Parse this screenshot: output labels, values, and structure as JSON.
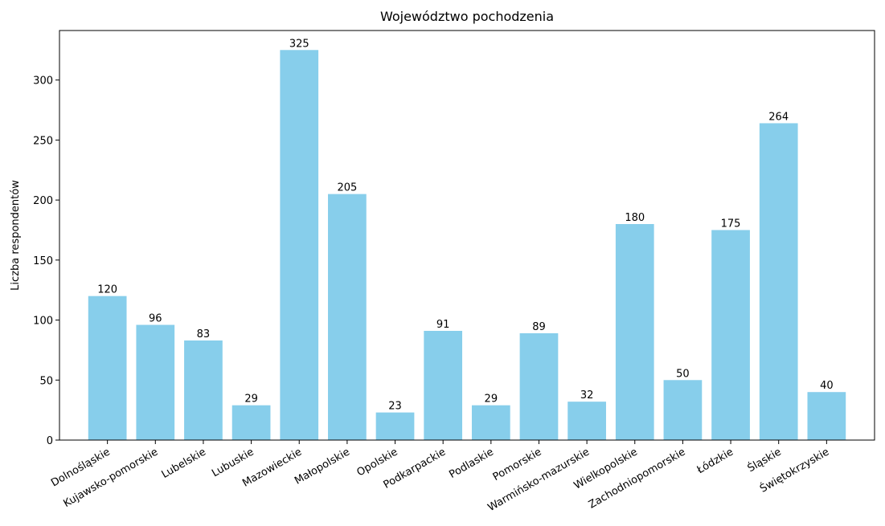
{
  "chart_data": {
    "type": "bar",
    "title": "Województwo pochodzenia",
    "ylabel": "Liczba respondentów",
    "categories": [
      "Dolnośląskie",
      "Kujawsko-pomorskie",
      "Lubelskie",
      "Lubuskie",
      "Mazowieckie",
      "Małopolskie",
      "Opolskie",
      "Podkarpackie",
      "Podlaskie",
      "Pomorskie",
      "Warmińsko-mazurskie",
      "Wielkopolskie",
      "Zachodniopomorskie",
      "Łódzkie",
      "Śląskie",
      "Świętokrzyskie"
    ],
    "values": [
      120,
      96,
      83,
      29,
      325,
      205,
      23,
      91,
      29,
      89,
      32,
      180,
      50,
      175,
      264,
      40
    ],
    "color": "#87ceeb",
    "ylim": [
      0,
      341.25
    ],
    "yticks": [
      0,
      50,
      100,
      150,
      200,
      250,
      300
    ]
  }
}
